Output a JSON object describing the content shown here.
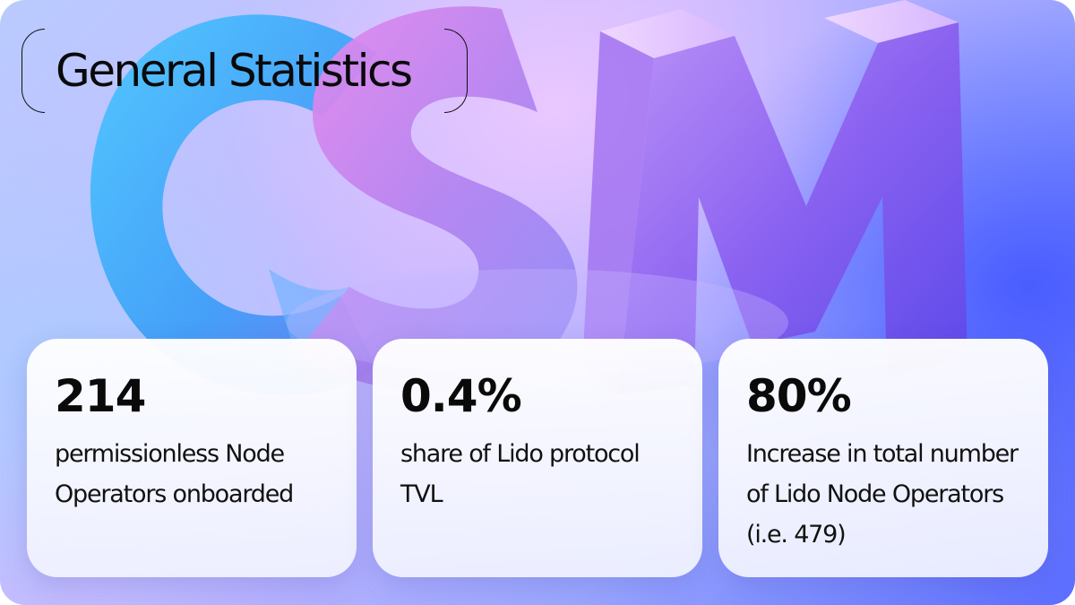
{
  "title": "General Statistics",
  "background": {
    "art_letters": "CSM",
    "colors": {
      "c_letter": "#33b8f5",
      "s_letter": "#d97be8",
      "m_letter": "#8a60ef",
      "accent_blue": "#3f5bff"
    }
  },
  "stats": [
    {
      "value": "214",
      "description": "permissionless Node Operators onboarded"
    },
    {
      "value": "0.4%",
      "description": "share of Lido protocol TVL"
    },
    {
      "value": "80%",
      "description": "Increase in total number of Lido Node Operators (i.e. 479)"
    }
  ]
}
